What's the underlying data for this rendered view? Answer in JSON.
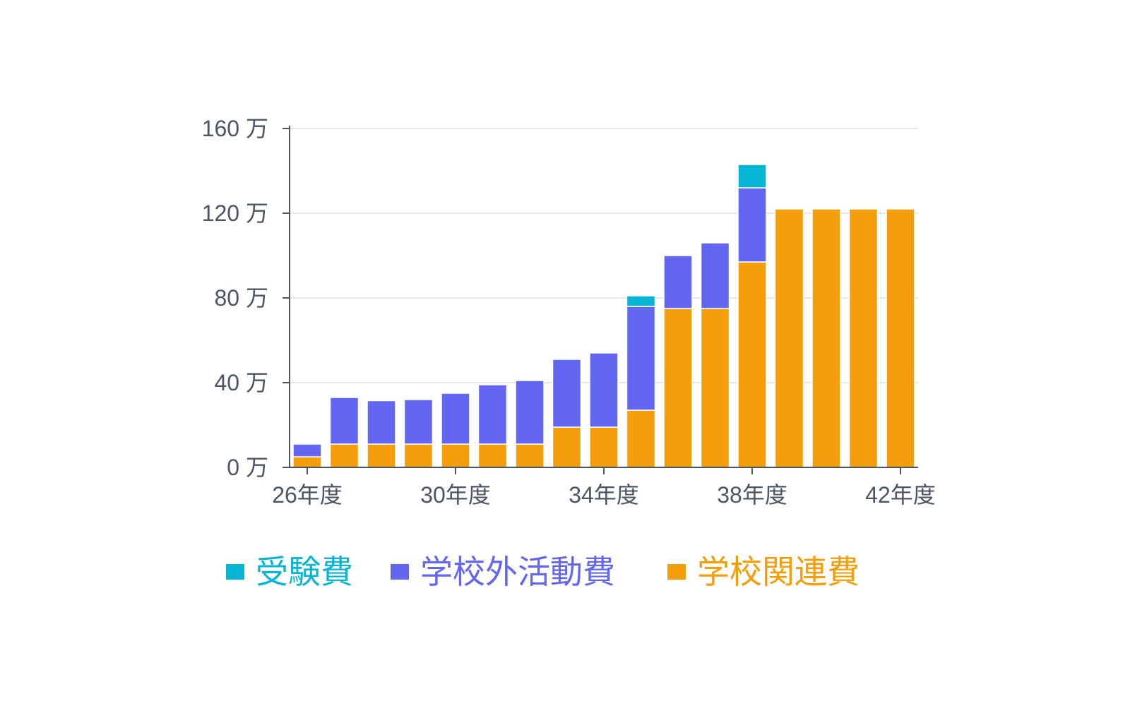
{
  "chart_data": {
    "type": "bar",
    "stacked": true,
    "x": [
      26,
      27,
      28,
      29,
      30,
      31,
      32,
      33,
      34,
      35,
      36,
      37,
      38,
      39,
      40,
      41,
      42
    ],
    "x_tick_values": [
      26,
      30,
      34,
      38,
      42
    ],
    "x_tick_labels": [
      "26年度",
      "30年度",
      "34年度",
      "38年度",
      "42年度"
    ],
    "y_tick_values": [
      0,
      40,
      80,
      120,
      160
    ],
    "y_tick_labels": [
      "0 万",
      "40 万",
      "80 万",
      "120 万",
      "160 万"
    ],
    "ylim": [
      0,
      160
    ],
    "grid": true,
    "legend_position": "bottom",
    "series": [
      {
        "name": "学校関連費",
        "color": "#f59e0b",
        "values": [
          5,
          11,
          11,
          11,
          11,
          11,
          11,
          19,
          19,
          27,
          75,
          75,
          97,
          122,
          122,
          122,
          122
        ]
      },
      {
        "name": "学校外活動費",
        "color": "#6366f1",
        "values": [
          6,
          22,
          20.5,
          21,
          24,
          28,
          30,
          32,
          35,
          49,
          25,
          31,
          35,
          0,
          0,
          0,
          0
        ]
      },
      {
        "name": "受験費",
        "color": "#06b6d4",
        "values": [
          0,
          0,
          0,
          0,
          0,
          0,
          0,
          0,
          0,
          5,
          0,
          0,
          11,
          0,
          0,
          0,
          0
        ]
      }
    ],
    "legend_order": [
      "受験費",
      "学校外活動費",
      "学校関連費"
    ]
  }
}
